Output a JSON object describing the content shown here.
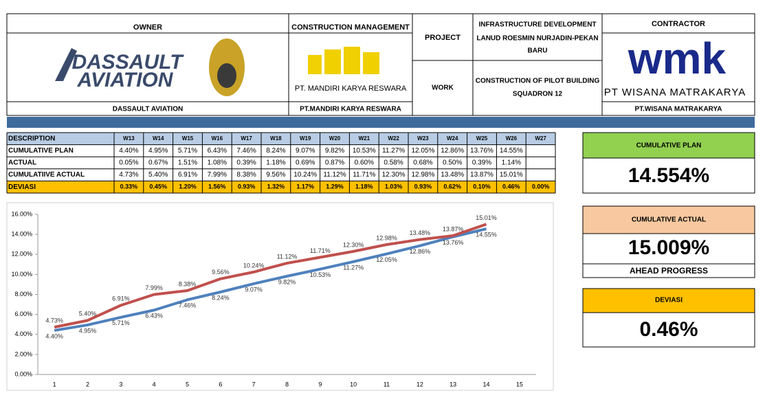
{
  "header": {
    "owner_label": "OWNER",
    "owner_logo": [
      "DASSAULT",
      "AVIATION"
    ],
    "owner_name": "DASSAULT AVIATION",
    "cm_label": "CONSTRUCTION MANAGEMENT",
    "cm_logo_text": "PT. MANDIRI KARYA RESWARA",
    "cm_name": "PT.MANDIRI KARYA RESWARA",
    "project_label": "PROJECT",
    "project_name": [
      "INFRASTRUCTURE DEVELOPMENT",
      "LANUD ROESMIN NURJADIN-PEKAN",
      "BARU"
    ],
    "work_label": "WORK",
    "work_name": [
      "CONSTRUCTION OF PILOT BUILDING",
      "SQUADRON 12"
    ],
    "contractor_label": "CONTRACTOR",
    "contractor_logo": "wmk",
    "contractor_logo_text": "PT WISANA MATRAKARYA",
    "contractor_name": "PT.WISANA MATRAKARYA"
  },
  "table": {
    "header": [
      "DESCRIPTION",
      "W13",
      "W14",
      "W15",
      "W16",
      "W17",
      "W18",
      "W19",
      "W20",
      "W21",
      "W22",
      "W23",
      "W24",
      "W25",
      "W26",
      "W27"
    ],
    "rows": [
      [
        "CUMULATIVE PLAN",
        "4.40%",
        "4.95%",
        "5.71%",
        "6.43%",
        "7.46%",
        "8.24%",
        "9.07%",
        "9.82%",
        "10.53%",
        "11.27%",
        "12.05%",
        "12.86%",
        "13.76%",
        "14.55%"
      ],
      [
        "ACTUAL",
        "0.05%",
        "0.67%",
        "1.51%",
        "1.08%",
        "0.39%",
        "1.18%",
        "0.69%",
        "0.87%",
        "0.60%",
        "0.58%",
        "0.68%",
        "0.50%",
        "0.39%",
        "1.14%"
      ],
      [
        "CUMULATIIVE ACTUAL",
        "4.73%",
        "5.40%",
        "6.91%",
        "7.99%",
        "8.38%",
        "9.56%",
        "10.24%",
        "11.12%",
        "11.71%",
        "12.30%",
        "12.98%",
        "13.48%",
        "13.87%",
        "15.01%"
      ],
      [
        "DEVIASI",
        "0.33%",
        "0.45%",
        "1.20%",
        "1.56%",
        "0.93%",
        "1.32%",
        "1.17%",
        "1.29%",
        "1.18%",
        "1.03%",
        "0.93%",
        "0.62%",
        "0.10%",
        "0.46%",
        "0.00%"
      ]
    ]
  },
  "cards": {
    "plan_label": "CUMULATIVE PLAN",
    "plan_value": "14.554%",
    "actual_label": "CUMULATIVE ACTUAL",
    "actual_value": "15.009%",
    "actual_note": "AHEAD PROGRESS",
    "dev_label": "DEVIASI",
    "dev_value": "0.46%"
  },
  "chart_data": {
    "type": "line",
    "categories": [
      "1",
      "2",
      "3",
      "4",
      "5",
      "6",
      "7",
      "8",
      "9",
      "10",
      "11",
      "12",
      "13",
      "14",
      "15"
    ],
    "ylim": [
      0,
      16
    ],
    "yticks": [
      {
        "value": 0,
        "label": "0.00%"
      },
      {
        "value": 2,
        "label": "2.00%"
      },
      {
        "value": 4,
        "label": "4.00%"
      },
      {
        "value": 6,
        "label": "6.00%"
      },
      {
        "value": 8,
        "label": "8.00%"
      },
      {
        "value": 10,
        "label": "10.00%"
      },
      {
        "value": 12,
        "label": "12.00%"
      },
      {
        "value": 14,
        "label": "14.00%"
      },
      {
        "value": 16,
        "label": "16.00%"
      }
    ],
    "grid": false,
    "series": [
      {
        "color": "#4f81bd",
        "values": [
          4.4,
          4.95,
          5.71,
          6.43,
          7.46,
          8.24,
          9.07,
          9.82,
          10.53,
          11.27,
          12.05,
          12.86,
          13.76,
          14.55,
          null
        ],
        "value_labels": [
          "4.40%",
          "4.95%",
          "5.71%",
          "6.43%",
          "7.46%",
          "8.24%",
          "9.07%",
          "9.82%",
          "10.53%",
          "11.27%",
          "12.05%",
          "12.86%",
          "13.76%",
          "14.55%",
          null
        ]
      },
      {
        "color": "#c0504d",
        "values": [
          4.73,
          5.4,
          6.91,
          7.99,
          8.38,
          9.56,
          10.24,
          11.12,
          11.71,
          12.3,
          12.98,
          13.48,
          13.87,
          15.01,
          null
        ],
        "value_labels": [
          "4.73%",
          "5.40%",
          "6.91%",
          "7.99%",
          "8.38%",
          "9.56%",
          "10.24%",
          "11.12%",
          "11.71%",
          "12.30%",
          "12.98%",
          "13.48%",
          "13.87%",
          "15.01%",
          null
        ]
      }
    ]
  }
}
